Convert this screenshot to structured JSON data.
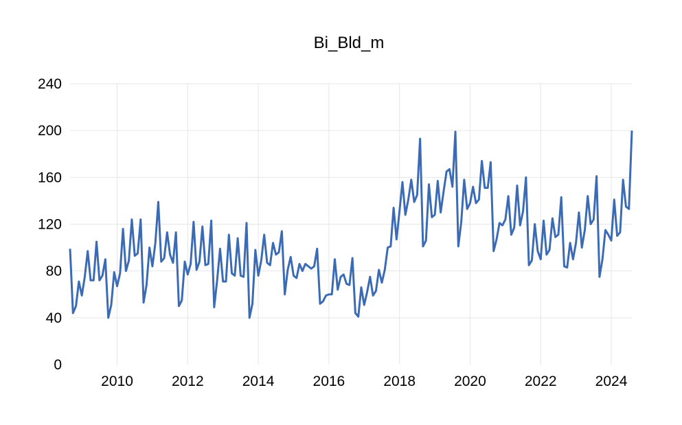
{
  "chart_data": {
    "type": "line",
    "title": "Bi_Bld_m",
    "xlabel": "",
    "ylabel": "",
    "ylim": [
      0,
      240
    ],
    "y_ticks": [
      "0",
      "40",
      "80",
      "120",
      "160",
      "200",
      "240"
    ],
    "x_ticks": [
      "2010",
      "2012",
      "2014",
      "2016",
      "2018",
      "2020",
      "2022",
      "2024"
    ],
    "grid": true,
    "legend": "none",
    "x_start": "2008-09",
    "x_frequency": "monthly",
    "series": [
      {
        "color": "#3b6bb5",
        "values": [
          99,
          44,
          50,
          71,
          59,
          75,
          97,
          72,
          72,
          105,
          72,
          76,
          90,
          40,
          51,
          79,
          67,
          78,
          116,
          80,
          89,
          124,
          93,
          95,
          124,
          53,
          68,
          100,
          84,
          104,
          139,
          88,
          91,
          113,
          94,
          87,
          113,
          50,
          55,
          88,
          77,
          86,
          122,
          81,
          88,
          118,
          85,
          86,
          123,
          49,
          72,
          99,
          71,
          71,
          111,
          78,
          76,
          108,
          76,
          75,
          121,
          40,
          52,
          98,
          76,
          89,
          111,
          87,
          85,
          104,
          94,
          96,
          114,
          60,
          81,
          92,
          76,
          74,
          86,
          80,
          86,
          84,
          82,
          84,
          99,
          52,
          54,
          59,
          60,
          60,
          90,
          64,
          75,
          77,
          69,
          68,
          91,
          44,
          41,
          66,
          51,
          62,
          75,
          59,
          63,
          81,
          70,
          81,
          100,
          101,
          134,
          107,
          131,
          156,
          128,
          141,
          158,
          139,
          145,
          193,
          101,
          106,
          154,
          126,
          128,
          157,
          130,
          148,
          165,
          167,
          152,
          199,
          101,
          122,
          158,
          133,
          138,
          152,
          138,
          141,
          174,
          151,
          151,
          173,
          97,
          107,
          121,
          119,
          124,
          144,
          111,
          117,
          153,
          119,
          131,
          160,
          85,
          89,
          120,
          97,
          90,
          123,
          94,
          98,
          125,
          109,
          111,
          143,
          84,
          83,
          104,
          90,
          104,
          130,
          100,
          115,
          144,
          120,
          124,
          161,
          75,
          90,
          115,
          111,
          106,
          141,
          110,
          113,
          158,
          135,
          133,
          200
        ]
      }
    ]
  }
}
